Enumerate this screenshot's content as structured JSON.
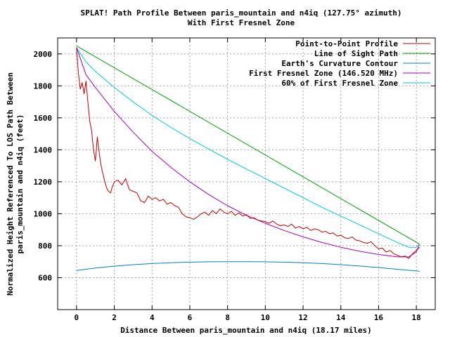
{
  "chart_data": {
    "type": "line",
    "title": "SPLAT! Path Profile Between paris_mountain and n4iq (127.75° azimuth)",
    "subtitle": "With First Fresnel Zone",
    "xlabel": "Distance Between paris_mountain and n4iq (18.17 miles)",
    "ylabel_line1": "Normalized Height Referenced To LOS Path Between",
    "ylabel_line2": "paris_mountain and n4iq (feet)",
    "xlim": [
      -1,
      19
    ],
    "ylim": [
      400,
      2100
    ],
    "x_ticks": [
      0,
      2,
      4,
      6,
      8,
      10,
      12,
      14,
      16,
      18
    ],
    "y_ticks": [
      600,
      800,
      1000,
      1200,
      1400,
      1600,
      1800,
      2000
    ],
    "grid": true,
    "legend_position": "top-right",
    "series": [
      {
        "name": "Point-to-Point Profile",
        "color": "#c00000",
        "x": [
          0,
          0.1,
          0.2,
          0.3,
          0.4,
          0.5,
          0.6,
          0.7,
          0.8,
          0.9,
          1.0,
          1.1,
          1.2,
          1.3,
          1.4,
          1.5,
          1.6,
          1.7,
          1.8,
          1.9,
          2.0,
          2.2,
          2.4,
          2.6,
          2.8,
          3.0,
          3.2,
          3.4,
          3.6,
          3.8,
          4.0,
          4.2,
          4.4,
          4.6,
          4.8,
          5.0,
          5.2,
          5.4,
          5.6,
          5.8,
          6.0,
          6.2,
          6.4,
          6.6,
          6.8,
          7.0,
          7.2,
          7.4,
          7.6,
          7.8,
          8.0,
          8.2,
          8.4,
          8.6,
          8.8,
          9.0,
          9.2,
          9.4,
          9.6,
          9.8,
          10.0,
          10.2,
          10.4,
          10.6,
          10.8,
          11.0,
          11.2,
          11.4,
          11.6,
          11.8,
          12.0,
          12.2,
          12.4,
          12.6,
          12.8,
          13.0,
          13.2,
          13.4,
          13.6,
          13.8,
          14.0,
          14.2,
          14.4,
          14.6,
          14.8,
          15.0,
          15.2,
          15.4,
          15.6,
          15.8,
          16.0,
          16.2,
          16.4,
          16.6,
          16.8,
          17.0,
          17.2,
          17.4,
          17.6,
          17.8,
          18.0,
          18.17
        ],
        "y": [
          2040,
          1880,
          1780,
          1820,
          1750,
          1830,
          1700,
          1580,
          1520,
          1400,
          1330,
          1480,
          1380,
          1300,
          1250,
          1200,
          1160,
          1140,
          1130,
          1170,
          1200,
          1210,
          1180,
          1220,
          1150,
          1140,
          1130,
          1080,
          1070,
          1110,
          1090,
          1100,
          1080,
          1090,
          1060,
          1070,
          1050,
          1040,
          1000,
          980,
          975,
          965,
          980,
          1000,
          1010,
          990,
          1020,
          1000,
          1030,
          1010,
          1000,
          1015,
          990,
          1005,
          985,
          995,
          970,
          975,
          960,
          955,
          950,
          940,
          955,
          935,
          925,
          930,
          920,
          935,
          910,
          920,
          905,
          915,
          895,
          905,
          900,
          885,
          890,
          875,
          880,
          860,
          865,
          850,
          845,
          855,
          835,
          830,
          820,
          815,
          825,
          800,
          780,
          785,
          760,
          770,
          750,
          740,
          730,
          735,
          720,
          750,
          770,
          790
        ]
      },
      {
        "name": "Line of Sight Path",
        "color": "#00a000",
        "x": [
          0,
          18.17
        ],
        "y": [
          2050,
          810
        ]
      },
      {
        "name": "Earth's Curvature Contour",
        "color": "#0080c0",
        "x": [
          0,
          1,
          2,
          3,
          4,
          5,
          6,
          7,
          8,
          9,
          10,
          11,
          12,
          13,
          14,
          15,
          16,
          17,
          18,
          18.17
        ],
        "y": [
          645,
          660,
          672,
          681,
          688,
          693,
          697,
          699,
          700,
          700,
          699,
          697,
          693,
          688,
          681,
          673,
          663,
          652,
          642,
          640
        ]
      },
      {
        "name": "First Fresnel Zone (146.520 MHz)",
        "color": "#a000c0",
        "x": [
          0,
          0.5,
          1,
          2,
          3,
          4,
          5,
          6,
          7,
          8,
          9,
          10,
          11,
          12,
          13,
          14,
          15,
          16,
          17,
          17.6,
          18.0,
          18.17
        ],
        "y": [
          2040,
          1870,
          1790,
          1640,
          1510,
          1390,
          1290,
          1200,
          1120,
          1050,
          990,
          940,
          895,
          855,
          820,
          790,
          765,
          745,
          730,
          730,
          760,
          810
        ]
      },
      {
        "name": "60% of First Fresnel Zone",
        "color": "#00c8d8",
        "x": [
          0,
          0.5,
          1,
          2,
          3,
          4,
          5,
          6,
          7,
          8,
          9,
          10,
          11,
          12,
          13,
          14,
          15,
          16,
          17,
          17.6,
          18.0,
          18.17
        ],
        "y": [
          2040,
          1950,
          1890,
          1790,
          1700,
          1615,
          1540,
          1470,
          1405,
          1340,
          1280,
          1220,
          1160,
          1100,
          1040,
          985,
          930,
          875,
          820,
          790,
          790,
          810
        ]
      }
    ]
  }
}
